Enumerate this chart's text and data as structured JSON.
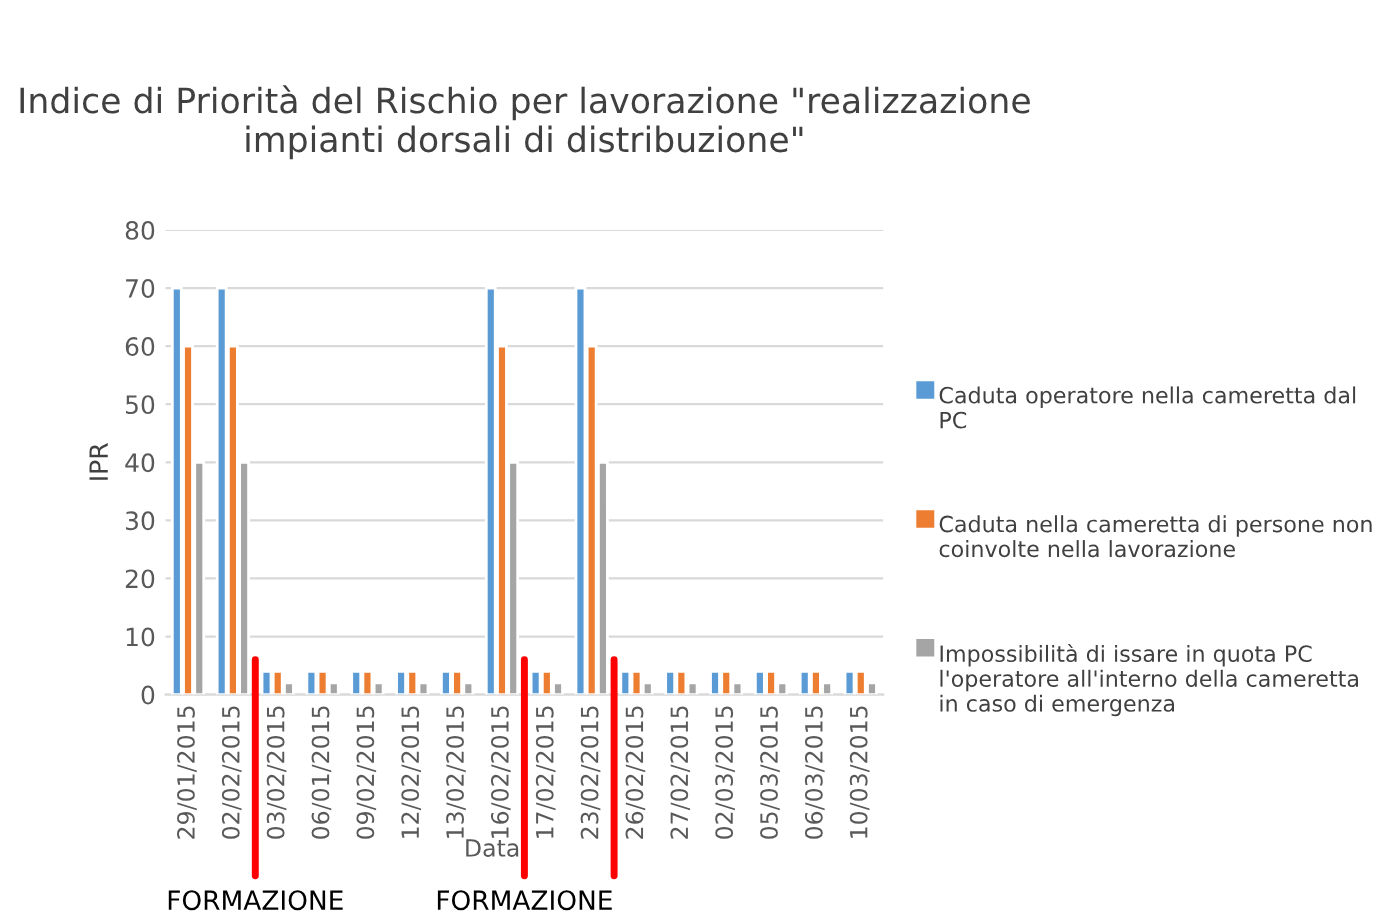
{
  "chart_data": {
    "type": "bar",
    "title": "Indice di Priorità del Rischio per lavorazione \"realizzazione impianti dorsali di distribuzione\"",
    "xlabel": "Data",
    "ylabel": "IPR",
    "categories": [
      "29/01/2015",
      "02/02/2015",
      "03/02/2015",
      "06/01/2015",
      "09/02/2015",
      "12/02/2015",
      "13/02/2015",
      "16/02/2015",
      "17/02/2015",
      "23/02/2015",
      "26/02/2015",
      "27/02/2015",
      "02/03/2015",
      "05/03/2015",
      "06/03/2015",
      "10/03/2015"
    ],
    "series": [
      {
        "name": "Caduta operatore nella cameretta dal PC",
        "color": "#5b9bd5",
        "values": [
          70,
          70,
          4,
          4,
          4,
          4,
          4,
          70,
          4,
          70,
          4,
          4,
          4,
          4,
          4,
          4
        ]
      },
      {
        "name": "Caduta nella cameretta di persone non coinvolte nella lavorazione",
        "color": "#ed7d31",
        "values": [
          60,
          60,
          4,
          4,
          4,
          4,
          4,
          60,
          4,
          60,
          4,
          4,
          4,
          4,
          4,
          4
        ]
      },
      {
        "name": "Impossibilità di issare in quota PC l'operatore all'interno della cameretta in caso di emergenza",
        "color": "#a5a5a5",
        "values": [
          40,
          40,
          2,
          2,
          2,
          2,
          2,
          40,
          2,
          40,
          2,
          2,
          2,
          2,
          2,
          2
        ]
      }
    ],
    "ylim": [
      0,
      80
    ],
    "yticks": [
      0,
      10,
      20,
      30,
      40,
      50,
      60,
      70,
      80
    ],
    "grid": "y",
    "legend": "right",
    "annotations": [
      {
        "text": "FORMAZIONE",
        "y": 6
      },
      {
        "text": "FORMAZIONE",
        "y": 6
      }
    ]
  }
}
